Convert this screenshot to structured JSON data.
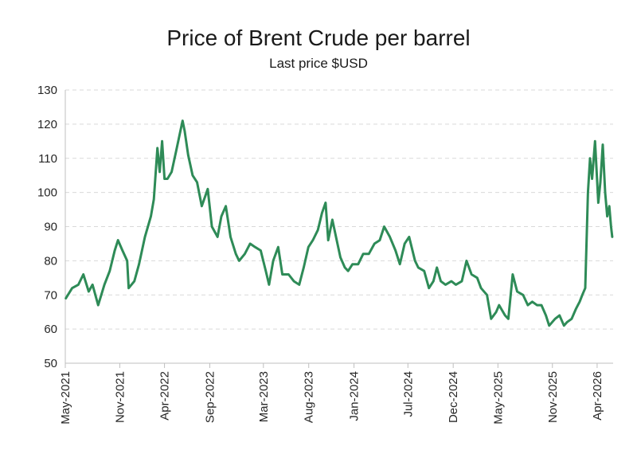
{
  "chart_data": {
    "type": "line",
    "title": "Price of Brent Crude per barrel",
    "subtitle": "Last price $USD",
    "xlabel": "",
    "ylabel": "",
    "ylim": [
      50,
      130
    ],
    "yticks": [
      "50",
      "60",
      "70",
      "80",
      "90",
      "100",
      "110",
      "120",
      "130"
    ],
    "x_tick_labels": [
      "May-2021",
      "Nov-2021",
      "Apr-2022",
      "Sep-2022",
      "Mar-2023",
      "Aug-2023",
      "Jan-2024",
      "Jul-2024",
      "Dec-2024",
      "May-2025",
      "Nov-2025",
      "Apr-2026"
    ],
    "grid": "horizontal-dashed",
    "legend": "none",
    "line_color": "#2e8b57",
    "series": [
      {
        "x": [
          "2021-05-03",
          "2021-05-24",
          "2021-06-14",
          "2021-07-01",
          "2021-07-19",
          "2021-08-01",
          "2021-08-20",
          "2021-09-10",
          "2021-09-28",
          "2021-10-15",
          "2021-10-26",
          "2021-11-10",
          "2021-11-26",
          "2021-12-01",
          "2021-12-20",
          "2022-01-05",
          "2022-01-25",
          "2022-02-14",
          "2022-02-24",
          "2022-03-08",
          "2022-03-16",
          "2022-03-24",
          "2022-04-01",
          "2022-04-11",
          "2022-04-25",
          "2022-05-10",
          "2022-06-01",
          "2022-06-08",
          "2022-06-20",
          "2022-07-05",
          "2022-07-20",
          "2022-08-05",
          "2022-08-25",
          "2022-09-08",
          "2022-09-27",
          "2022-10-10",
          "2022-10-25",
          "2022-11-10",
          "2022-11-28",
          "2022-12-09",
          "2022-12-28",
          "2023-01-15",
          "2023-02-01",
          "2023-02-20",
          "2023-03-09",
          "2023-03-20",
          "2023-04-03",
          "2023-04-20",
          "2023-05-04",
          "2023-05-25",
          "2023-06-12",
          "2023-06-30",
          "2023-07-15",
          "2023-07-31",
          "2023-08-15",
          "2023-09-01",
          "2023-09-15",
          "2023-09-27",
          "2023-10-06",
          "2023-10-20",
          "2023-11-06",
          "2023-11-16",
          "2023-12-01",
          "2023-12-12",
          "2023-12-27",
          "2024-01-15",
          "2024-02-01",
          "2024-02-20",
          "2024-03-10",
          "2024-03-28",
          "2024-04-12",
          "2024-05-01",
          "2024-05-20",
          "2024-06-04",
          "2024-06-20",
          "2024-07-05",
          "2024-07-25",
          "2024-08-05",
          "2024-08-25",
          "2024-09-10",
          "2024-09-25",
          "2024-10-07",
          "2024-10-20",
          "2024-11-05",
          "2024-11-25",
          "2024-12-10",
          "2024-12-30",
          "2025-01-15",
          "2025-02-01",
          "2025-02-20",
          "2025-03-05",
          "2025-03-25",
          "2025-04-08",
          "2025-04-25",
          "2025-05-05",
          "2025-05-25",
          "2025-06-05",
          "2025-06-20",
          "2025-07-05",
          "2025-07-25",
          "2025-08-10",
          "2025-08-25",
          "2025-09-10",
          "2025-09-25",
          "2025-10-10",
          "2025-10-21",
          "2025-11-10",
          "2025-11-25",
          "2025-12-10",
          "2025-12-20",
          "2026-01-05",
          "2026-01-20",
          "2026-02-01",
          "2026-02-10",
          "2026-02-20",
          "2026-03-01",
          "2026-03-08",
          "2026-03-15",
          "2026-03-25",
          "2026-04-05",
          "2026-04-12",
          "2026-04-20",
          "2026-04-28",
          "2026-05-05",
          "2026-05-12",
          "2026-05-18",
          "2026-05-22"
        ],
        "values": [
          69,
          72,
          73,
          76,
          71,
          73,
          67,
          73,
          77,
          83,
          86,
          83,
          80,
          72,
          74,
          79,
          87,
          93,
          98,
          113,
          106,
          115,
          104,
          104,
          106,
          112,
          121,
          118,
          111,
          105,
          103,
          96,
          101,
          90,
          87,
          93,
          96,
          87,
          82,
          80,
          82,
          85,
          84,
          83,
          77,
          73,
          80,
          84,
          76,
          76,
          74,
          73,
          78,
          84,
          86,
          89,
          94,
          97,
          86,
          92,
          85,
          81,
          78,
          77,
          79,
          79,
          82,
          82,
          85,
          86,
          90,
          87,
          83,
          79,
          85,
          87,
          80,
          78,
          77,
          72,
          74,
          78,
          74,
          73,
          74,
          73,
          74,
          80,
          76,
          75,
          72,
          70,
          63,
          65,
          67,
          64,
          63,
          76,
          71,
          70,
          67,
          68,
          67,
          67,
          64,
          61,
          63,
          64,
          61,
          62,
          63,
          66,
          68,
          70,
          72,
          100,
          110,
          104,
          115,
          97,
          103,
          114,
          100,
          93,
          96,
          90,
          87
        ]
      }
    ]
  }
}
